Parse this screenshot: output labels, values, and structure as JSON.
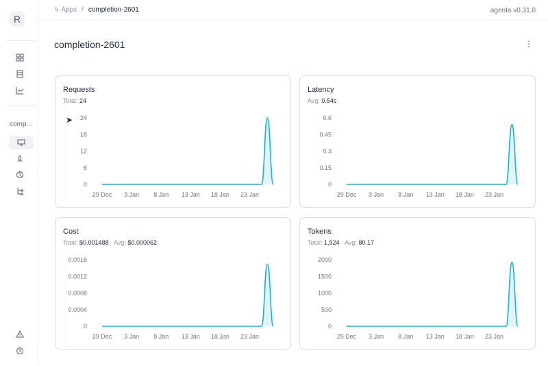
{
  "sidebar": {
    "logo": "R",
    "app_short": "comp...",
    "icons": [
      "grid-icon",
      "table-icon",
      "chart-icon",
      "monitor-icon",
      "rocket-icon",
      "chart-pie-icon",
      "tree-icon",
      "warning-icon",
      "help-icon"
    ]
  },
  "header": {
    "crumb_root": "Apps",
    "separator": "/",
    "crumb_current": "completion-2601",
    "version": "agenta v0.31.0"
  },
  "page": {
    "title": "completion-2601",
    "more": "⋮"
  },
  "colors": {
    "line": "#13b5cf",
    "fill": "#d7f2f7"
  },
  "cards": [
    {
      "title": "Requests",
      "stats": [
        {
          "label": "Total:",
          "value": "24"
        }
      ]
    },
    {
      "title": "Latency",
      "stats": [
        {
          "label": "Avg:",
          "value": "0.54s"
        }
      ]
    },
    {
      "title": "Cost",
      "stats": [
        {
          "label": "Total:",
          "value": "$0.001488"
        },
        {
          "label": "Avg:",
          "value": "$0.000062"
        }
      ]
    },
    {
      "title": "Tokens",
      "stats": [
        {
          "label": "Total:",
          "value": "1,924"
        },
        {
          "label": "Avg:",
          "value": "80.17"
        }
      ]
    }
  ],
  "chart_data": [
    {
      "type": "area",
      "x": [
        "29 Dec",
        "30 Dec",
        "31 Dec",
        "1 Jan",
        "2 Jan",
        "3 Jan",
        "4 Jan",
        "5 Jan",
        "6 Jan",
        "7 Jan",
        "8 Jan",
        "9 Jan",
        "10 Jan",
        "11 Jan",
        "12 Jan",
        "13 Jan",
        "14 Jan",
        "15 Jan",
        "16 Jan",
        "17 Jan",
        "18 Jan",
        "19 Jan",
        "20 Jan",
        "21 Jan",
        "22 Jan",
        "23 Jan",
        "24 Jan",
        "25 Jan",
        "26 Jan",
        "27 Jan"
      ],
      "values": [
        0,
        0,
        0,
        0,
        0,
        0,
        0,
        0,
        0,
        0,
        0,
        0,
        0,
        0,
        0,
        0,
        0,
        0,
        0,
        0,
        0,
        0,
        0,
        0,
        0,
        0,
        0,
        0,
        24,
        0
      ],
      "xticks": [
        "29 Dec",
        "3 Jan",
        "8 Jan",
        "13 Jan",
        "18 Jan",
        "23 Jan"
      ],
      "yticks": [
        "0",
        "6",
        "12",
        "18",
        "24"
      ],
      "ylim": [
        0,
        24
      ]
    },
    {
      "type": "area",
      "values": [
        0,
        0,
        0,
        0,
        0,
        0,
        0,
        0,
        0,
        0,
        0,
        0,
        0,
        0,
        0,
        0,
        0,
        0,
        0,
        0,
        0,
        0,
        0,
        0,
        0,
        0,
        0,
        0,
        0.54,
        0
      ],
      "xticks": [
        "29 Dec",
        "3 Jan",
        "8 Jan",
        "13 Jan",
        "18 Jan",
        "23 Jan"
      ],
      "yticks": [
        "0",
        "0.15",
        "0.3",
        "0.45",
        "0.6"
      ],
      "ylim": [
        0,
        0.6
      ]
    },
    {
      "type": "area",
      "values": [
        0,
        0,
        0,
        0,
        0,
        0,
        0,
        0,
        0,
        0,
        0,
        0,
        0,
        0,
        0,
        0,
        0,
        0,
        0,
        0,
        0,
        0,
        0,
        0,
        0,
        0,
        0,
        0,
        0.001488,
        0
      ],
      "xticks": [
        "29 Dec",
        "3 Jan",
        "8 Jan",
        "13 Jan",
        "18 Jan",
        "23 Jan"
      ],
      "yticks": [
        "0",
        "0.0004",
        "0.0008",
        "0.0012",
        "0.0016"
      ],
      "ylim": [
        0,
        0.0016
      ]
    },
    {
      "type": "area",
      "values": [
        0,
        0,
        0,
        0,
        0,
        0,
        0,
        0,
        0,
        0,
        0,
        0,
        0,
        0,
        0,
        0,
        0,
        0,
        0,
        0,
        0,
        0,
        0,
        0,
        0,
        0,
        0,
        0,
        1924,
        0
      ],
      "xticks": [
        "29 Dec",
        "3 Jan",
        "8 Jan",
        "13 Jan",
        "18 Jan",
        "23 Jan"
      ],
      "yticks": [
        "0",
        "500",
        "1000",
        "1500",
        "2000"
      ],
      "ylim": [
        0,
        2000
      ]
    }
  ]
}
